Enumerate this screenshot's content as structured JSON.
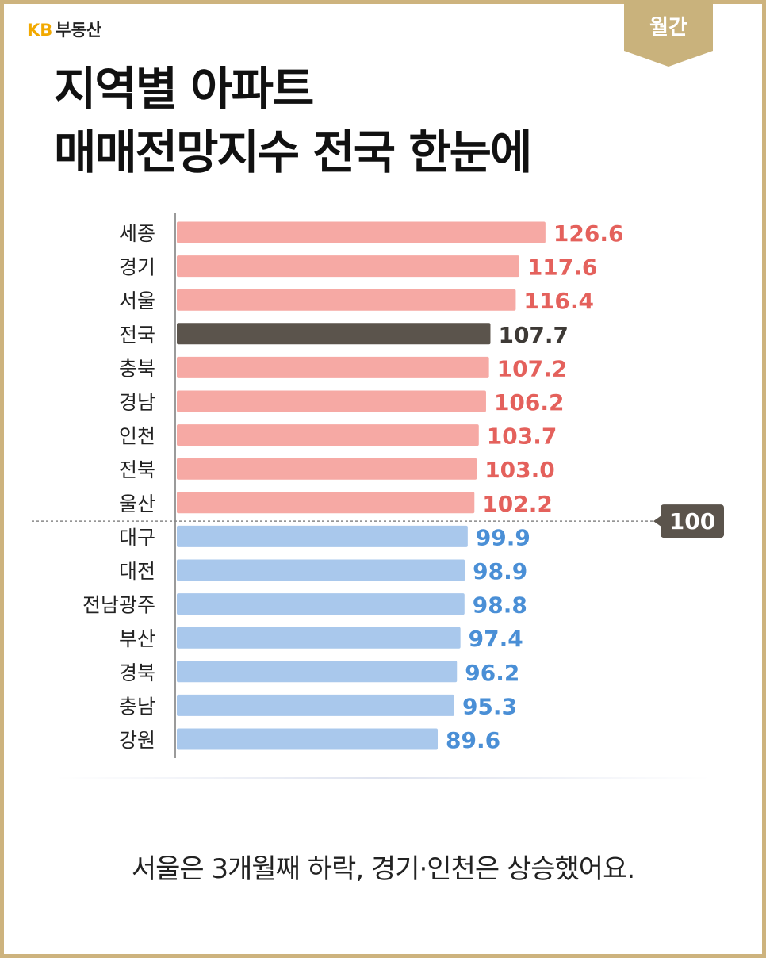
{
  "brand": {
    "kb": "KB",
    "name": "부동산"
  },
  "badge": {
    "label": "월간"
  },
  "title": {
    "line1": "지역별 아파트",
    "line2": "매매전망지수 전국 한눈에"
  },
  "chart_data": {
    "type": "bar",
    "orientation": "horizontal",
    "categories": [
      "세종",
      "경기",
      "서울",
      "전국",
      "충북",
      "경남",
      "인천",
      "전북",
      "울산",
      "대구",
      "대전",
      "전남광주",
      "부산",
      "경북",
      "충남",
      "강원"
    ],
    "values": [
      126.6,
      117.6,
      116.4,
      107.7,
      107.2,
      106.2,
      103.7,
      103.0,
      102.2,
      99.9,
      98.9,
      98.8,
      97.4,
      96.2,
      95.3,
      89.6
    ],
    "value_labels": [
      "126.6",
      "117.6",
      "116.4",
      "107.7",
      "107.2",
      "106.2",
      "103.7",
      "103.0",
      "102.2",
      "99.9",
      "98.9",
      "98.8",
      "97.4",
      "96.2",
      "95.3",
      "89.6"
    ],
    "highlight_category": "전국",
    "reference_line": {
      "value": 100,
      "label": "100"
    },
    "colors": {
      "above": "#f6a9a4",
      "above_text": "#e4615c",
      "below": "#a9c8ec",
      "below_text": "#4a8fd6",
      "highlight": "#5b544c",
      "highlight_text": "#3e3a36",
      "axis": "#9a9a9a",
      "reference": "#888888",
      "reference_badge": "#5b544c"
    },
    "grid": false
  },
  "caption": "서울은 3개월째 하락, 경기·인천은 상승했어요."
}
